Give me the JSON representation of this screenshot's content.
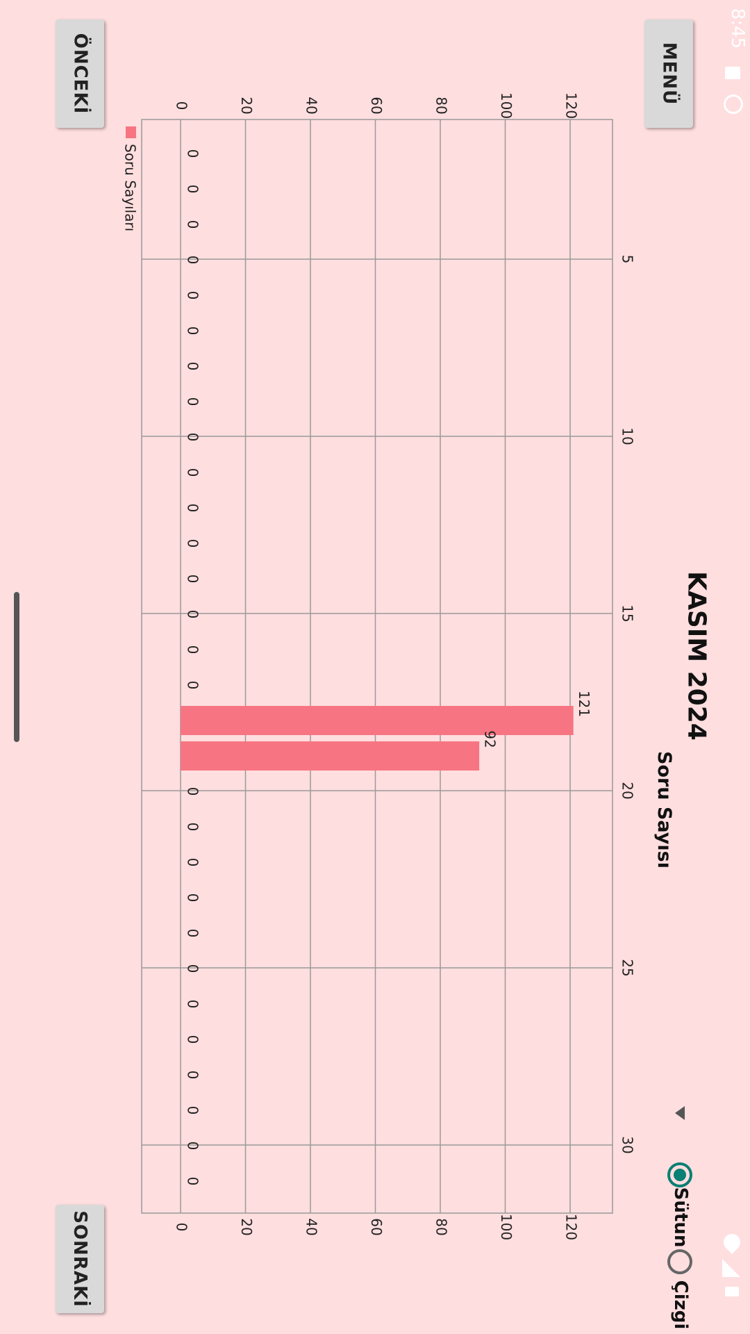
{
  "status_bar": {
    "time": "8:45"
  },
  "buttons": {
    "menu": "MENÜ",
    "previous": "ÖNCEKİ",
    "next": "SONRAKİ"
  },
  "header": {
    "title": "KASIM 2024",
    "subtitle": "Soru Sayısı"
  },
  "chart_type_options": [
    {
      "label": "Sütun",
      "selected": true
    },
    {
      "label": "Çizgi",
      "selected": false
    }
  ],
  "colors": {
    "background": "#FFDEDF",
    "bar": "#F77582",
    "accent": "#0A7F73"
  },
  "chart_data": {
    "type": "bar",
    "title": "",
    "legend": [
      "Soru Sayıları"
    ],
    "x": [
      1,
      2,
      3,
      4,
      5,
      6,
      7,
      8,
      9,
      10,
      11,
      12,
      13,
      14,
      15,
      16,
      17,
      18,
      19,
      20,
      21,
      22,
      23,
      24,
      25,
      26,
      27,
      28,
      29,
      30
    ],
    "x_ticks": [
      "5",
      "10",
      "15",
      "20",
      "25",
      "30"
    ],
    "series": [
      {
        "name": "Soru Sayıları",
        "values": [
          0,
          0,
          0,
          0,
          0,
          0,
          0,
          0,
          0,
          0,
          0,
          0,
          0,
          0,
          0,
          0,
          121,
          92,
          0,
          0,
          0,
          0,
          0,
          0,
          0,
          0,
          0,
          0,
          0,
          0
        ]
      }
    ],
    "ylim": [
      0,
      130
    ],
    "y_ticks": [
      "0",
      "20",
      "40",
      "60",
      "80",
      "100",
      "120"
    ],
    "grid": true,
    "legend_position": "top-left"
  }
}
